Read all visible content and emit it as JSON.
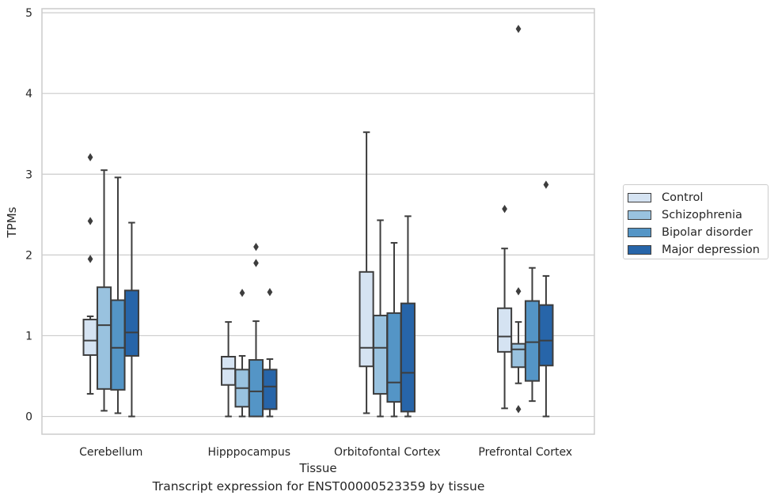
{
  "caption": "Transcript expression for ENST00000523359 by tissue",
  "legend_items": [
    {
      "label": "Control",
      "color": "#d5e3f2"
    },
    {
      "label": "Schizophrenia",
      "color": "#99c2df"
    },
    {
      "label": "Bipolar disorder",
      "color": "#5495c6"
    },
    {
      "label": "Major depression",
      "color": "#2765a9"
    }
  ],
  "chart_data": {
    "type": "boxplot",
    "xlabel": "Tissue",
    "ylabel": "TPMs",
    "ylim": [
      -0.22,
      5.05
    ],
    "yticks": [
      0,
      1,
      2,
      3,
      4,
      5
    ],
    "grid": true,
    "legend": "right",
    "categories": [
      "Cerebellum",
      "Hipppocampus",
      "Orbitofontal Cortex",
      "Prefrontal Cortex"
    ],
    "series": [
      {
        "name": "Control",
        "color": "#d5e3f2",
        "boxes": [
          {
            "whislo": 0.28,
            "q1": 0.76,
            "med": 0.94,
            "q3": 1.2,
            "whishi": 1.24,
            "fliers": [
              1.95,
              2.42,
              3.21
            ]
          },
          {
            "whislo": 0.0,
            "q1": 0.39,
            "med": 0.59,
            "q3": 0.74,
            "whishi": 1.17,
            "fliers": []
          },
          {
            "whislo": 0.04,
            "q1": 0.62,
            "med": 0.85,
            "q3": 1.79,
            "whishi": 3.52,
            "fliers": []
          },
          {
            "whislo": 0.1,
            "q1": 0.8,
            "med": 0.99,
            "q3": 1.34,
            "whishi": 2.08,
            "fliers": [
              2.57
            ]
          }
        ]
      },
      {
        "name": "Schizophrenia",
        "color": "#99c2df",
        "boxes": [
          {
            "whislo": 0.07,
            "q1": 0.34,
            "med": 1.13,
            "q3": 1.6,
            "whishi": 3.05,
            "fliers": []
          },
          {
            "whislo": 0.0,
            "q1": 0.12,
            "med": 0.35,
            "q3": 0.58,
            "whishi": 0.75,
            "fliers": [
              1.53
            ]
          },
          {
            "whislo": 0.0,
            "q1": 0.28,
            "med": 0.85,
            "q3": 1.25,
            "whishi": 2.43,
            "fliers": []
          },
          {
            "whislo": 0.41,
            "q1": 0.61,
            "med": 0.83,
            "q3": 0.9,
            "whishi": 1.17,
            "fliers": [
              0.09,
              1.55,
              4.8
            ]
          }
        ]
      },
      {
        "name": "Bipolar disorder",
        "color": "#5495c6",
        "boxes": [
          {
            "whislo": 0.04,
            "q1": 0.33,
            "med": 0.85,
            "q3": 1.44,
            "whishi": 2.96,
            "fliers": []
          },
          {
            "whislo": 0.0,
            "q1": 0.0,
            "med": 0.31,
            "q3": 0.7,
            "whishi": 1.18,
            "fliers": [
              1.9,
              2.1
            ]
          },
          {
            "whislo": 0.0,
            "q1": 0.18,
            "med": 0.42,
            "q3": 1.28,
            "whishi": 2.15,
            "fliers": []
          },
          {
            "whislo": 0.19,
            "q1": 0.44,
            "med": 0.92,
            "q3": 1.43,
            "whishi": 1.84,
            "fliers": []
          }
        ]
      },
      {
        "name": "Major depression",
        "color": "#2765a9",
        "boxes": [
          {
            "whislo": 0.0,
            "q1": 0.75,
            "med": 1.04,
            "q3": 1.56,
            "whishi": 2.4,
            "fliers": []
          },
          {
            "whislo": 0.0,
            "q1": 0.09,
            "med": 0.37,
            "q3": 0.58,
            "whishi": 0.71,
            "fliers": [
              1.54
            ]
          },
          {
            "whislo": 0.0,
            "q1": 0.06,
            "med": 0.54,
            "q3": 1.4,
            "whishi": 2.48,
            "fliers": []
          },
          {
            "whislo": 0.0,
            "q1": 0.63,
            "med": 0.94,
            "q3": 1.38,
            "whishi": 1.74,
            "fliers": [
              2.87
            ]
          }
        ]
      }
    ]
  }
}
